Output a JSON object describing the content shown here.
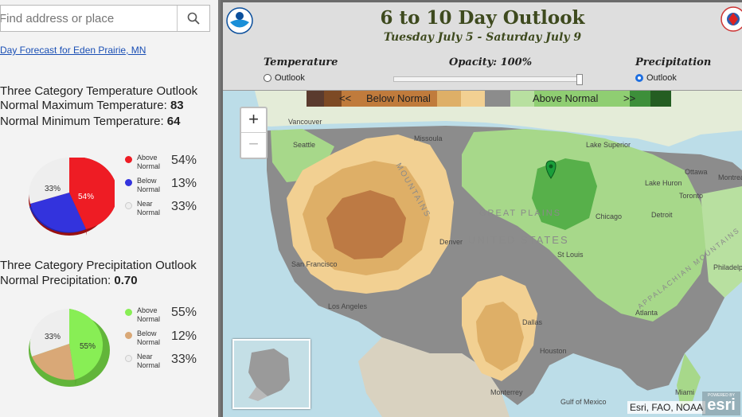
{
  "search": {
    "placeholder": "Find address or place"
  },
  "forecast_link": "Day Forecast for Eden Prairie, MN",
  "temperature_panel": {
    "title": "Three Category Temperature Outlook",
    "max_label": "Normal Maximum Temperature: ",
    "max_value": "83",
    "min_label": "Normal Minimum Temperature: ",
    "min_value": "64",
    "legend": [
      {
        "label_line1": "Above",
        "label_line2": "Normal",
        "value": "54%",
        "color": "#ee1c24"
      },
      {
        "label_line1": "Below",
        "label_line2": "Normal",
        "value": "13%",
        "color": "#3333dd"
      },
      {
        "label_line1": "Near",
        "label_line2": "Normal",
        "value": "33%",
        "color": "#eeeeee"
      }
    ],
    "pie_labels": {
      "above": "54%",
      "near": "33%"
    }
  },
  "precip_panel": {
    "title": "Three Category Precipitation Outlook",
    "normal_label": "Normal Precipitation: ",
    "normal_value": "0.70",
    "legend": [
      {
        "label_line1": "Above",
        "label_line2": "Normal",
        "value": "55%",
        "color": "#88ee55"
      },
      {
        "label_line1": "Below",
        "label_line2": "Normal",
        "value": "12%",
        "color": "#d9a877"
      },
      {
        "label_line1": "Near",
        "label_line2": "Normal",
        "value": "33%",
        "color": "#eeeeee"
      }
    ],
    "pie_labels": {
      "above": "55%",
      "near": "33%"
    }
  },
  "header": {
    "title": "6 to 10 Day Outlook",
    "subtitle": "Tuesday July 5 - Saturday July 9"
  },
  "controls": {
    "temperature_label": "Temperature",
    "temperature_radio": "Outlook",
    "opacity_label": "Opacity: 100%",
    "opacity_value": 1.0,
    "precipitation_label": "Precipitation",
    "precipitation_radio": "Outlook",
    "selected": "precipitation"
  },
  "map_legend": {
    "below_prev": "<<",
    "below_label": "Below Normal",
    "above_label": "Above Normal",
    "above_next": ">>"
  },
  "map": {
    "cities": [
      "Vancouver",
      "Seattle",
      "Missoula",
      "Lake Superior",
      "Ottawa",
      "Montreal",
      "Lake Huron",
      "Toronto",
      "Chicago",
      "Detroit",
      "San Francisco",
      "Denver",
      "St Louis",
      "Los Angeles",
      "Philadelphia",
      "Dallas",
      "Atlanta",
      "Houston",
      "Monterrey",
      "Miami",
      "Gulf of Mexico"
    ],
    "regions": [
      "GREAT PLAINS",
      "UNITED STATES",
      "MOUNTAINS",
      "APPALACHIAN MOUNTAINS"
    ],
    "attribution": "Esri, FAO, NOAA",
    "logo": "esri",
    "logo_top": "POWERED BY"
  },
  "zoom": {
    "in": "+",
    "out": "−"
  }
}
